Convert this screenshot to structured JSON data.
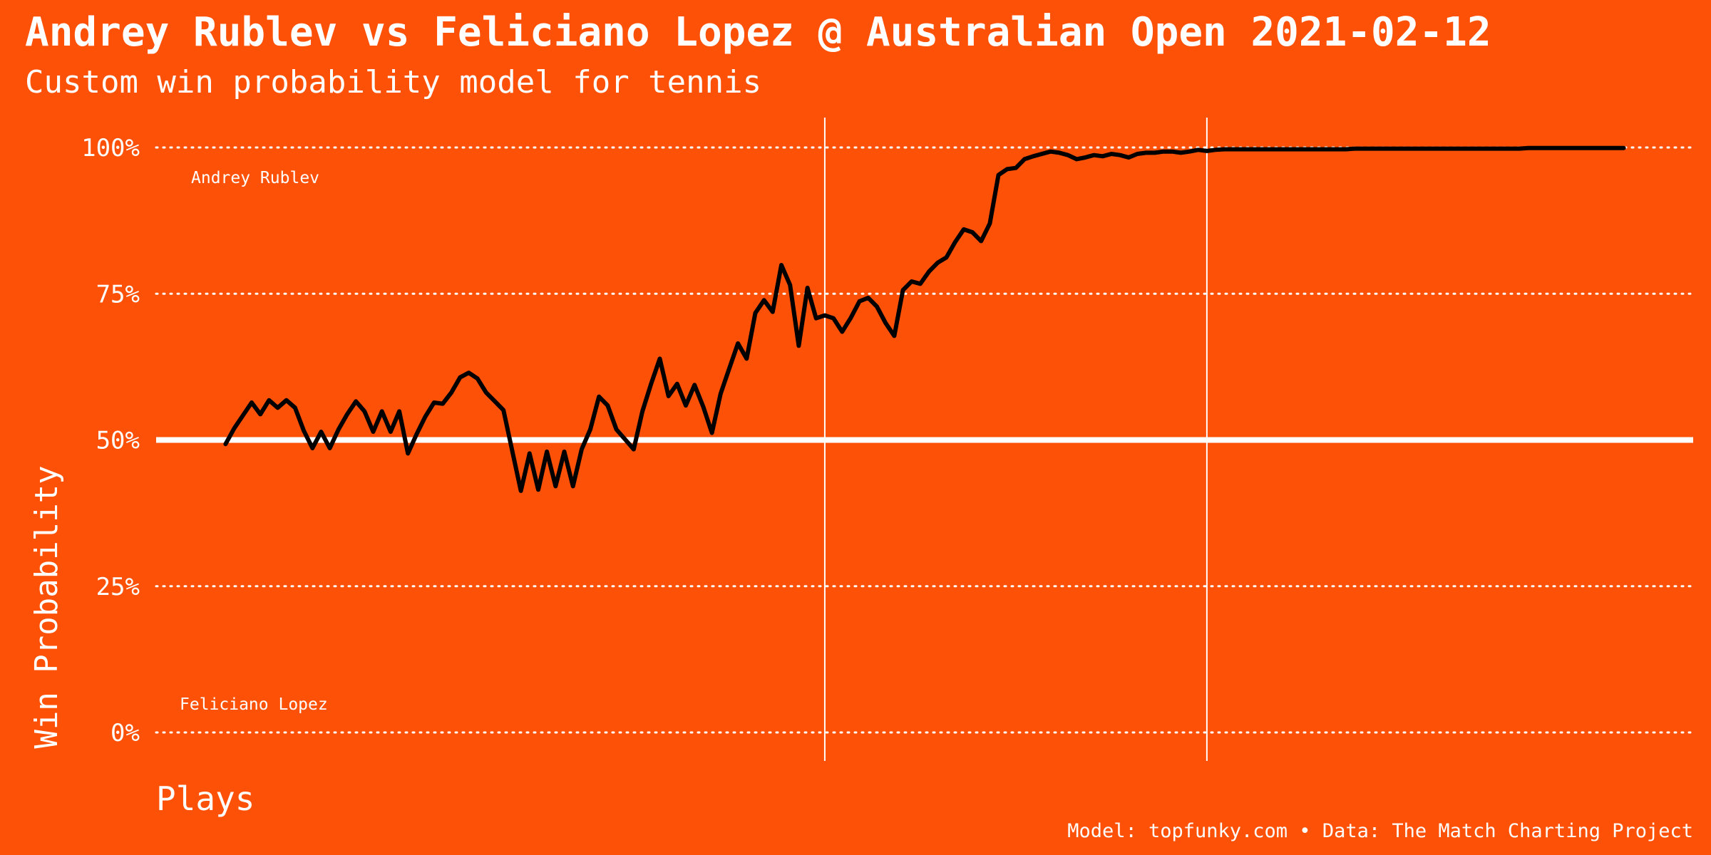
{
  "chart_data": {
    "type": "line",
    "title": "Andrey Rublev vs Feliciano Lopez @ Australian Open 2021-02-12",
    "subtitle": "Custom win probability model for tennis",
    "ylabel": "Win Probability",
    "xlabel": "Plays",
    "caption": "Model: topfunky.com • Data: The Match Charting Project",
    "annotations": [
      "Andrey Rublev",
      "Feliciano Lopez"
    ],
    "color": "#000000",
    "background": "#fe5108",
    "grid": true,
    "hline": 50,
    "vlines": [
      69,
      113
    ],
    "xlim": [
      -8,
      169
    ],
    "ylim": [
      0,
      100
    ],
    "yticks": [
      {
        "value": 0,
        "label": "0%"
      },
      {
        "value": 25,
        "label": "25%"
      },
      {
        "value": 50,
        "label": "50%"
      },
      {
        "value": 75,
        "label": "75%"
      },
      {
        "value": 100,
        "label": "100%"
      }
    ],
    "values": [
      49.3,
      52,
      54.2,
      56.4,
      54.4,
      56.8,
      55.5,
      56.8,
      55.5,
      51.6,
      48.6,
      51.4,
      48.6,
      51.8,
      54.4,
      56.6,
      54.9,
      51.4,
      54.9,
      51.4,
      54.9,
      47.7,
      51,
      54,
      56.4,
      56.2,
      58.1,
      60.7,
      61.5,
      60.5,
      58.1,
      56.6,
      55.1,
      48.2,
      41.3,
      47.7,
      41.5,
      48,
      42.1,
      48,
      42.1,
      48.4,
      51.8,
      57.4,
      55.9,
      51.8,
      50.1,
      48.4,
      54.9,
      59.6,
      63.9,
      57.5,
      59.6,
      55.9,
      59.4,
      55.7,
      51.2,
      57.9,
      62.2,
      66.5,
      63.9,
      71.7,
      73.9,
      71.9,
      79.9,
      76.5,
      66.1,
      76,
      70.8,
      71.3,
      70.8,
      68.5,
      70.9,
      73.7,
      74.3,
      72.8,
      70,
      67.8,
      75.6,
      77.1,
      76.7,
      78.8,
      80.3,
      81.2,
      83.8,
      86,
      85.5,
      84,
      87,
      95.3,
      96.3,
      96.5,
      98,
      98.5,
      98.9,
      99.3,
      99.1,
      98.7,
      98,
      98.3,
      98.7,
      98.5,
      98.9,
      98.7,
      98.3,
      98.9,
      99.1,
      99.1,
      99.3,
      99.3,
      99.1,
      99.3,
      99.6,
      99.4,
      99.6,
      99.7,
      99.7,
      99.7,
      99.7,
      99.7,
      99.7,
      99.7,
      99.7,
      99.7,
      99.7,
      99.7,
      99.7,
      99.7,
      99.7,
      99.7,
      99.8,
      99.8,
      99.8,
      99.8,
      99.8,
      99.8,
      99.8,
      99.8,
      99.8,
      99.8,
      99.8,
      99.8,
      99.8,
      99.8,
      99.8,
      99.8,
      99.8,
      99.8,
      99.8,
      99.8,
      99.9,
      99.9,
      99.9,
      99.9,
      99.9,
      99.9,
      99.9,
      99.9,
      99.9,
      99.9,
      99.9,
      99.9
    ]
  }
}
